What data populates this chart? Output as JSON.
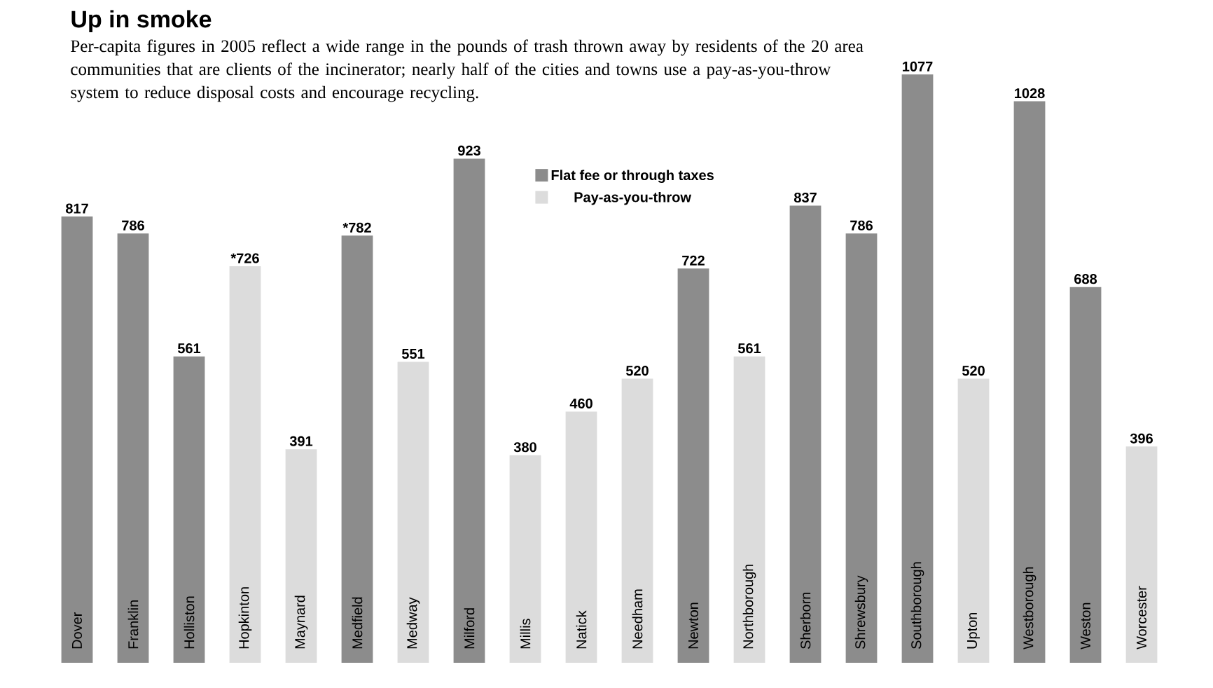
{
  "chart_data": {
    "type": "bar",
    "title": "Up in smoke",
    "subtitle": "Per-capita figures in 2005 reflect a wide range in the pounds of trash thrown away by residents of the 20 area communities that are clients of the incinerator; nearly half of the cities and towns use a pay-as-you-throw system to reduce disposal costs and encourage recycling.",
    "categories": [
      "Dover",
      "Franklin",
      "Holliston",
      "Hopkinton",
      "Maynard",
      "Medfield",
      "Medway",
      "Milford",
      "Millis",
      "Natick",
      "Needham",
      "Newton",
      "Northborough",
      "Sherborn",
      "Shrewsbury",
      "Southborough",
      "Upton",
      "Westborough",
      "Weston",
      "Worcester"
    ],
    "series": [
      {
        "name": "Flat fee or through taxes",
        "color": "#8c8c8c",
        "values": [
          817,
          786,
          561,
          null,
          null,
          782,
          null,
          923,
          null,
          null,
          null,
          722,
          null,
          837,
          786,
          1077,
          null,
          1028,
          688,
          null
        ],
        "value_labels": [
          "817",
          "786",
          "561",
          null,
          null,
          "*782",
          null,
          "923",
          null,
          null,
          null,
          "722",
          null,
          "837",
          "786",
          "1077",
          null,
          "1028",
          "688",
          null
        ]
      },
      {
        "name": "Pay-as-you-throw",
        "color": "#dcdcdc",
        "values": [
          null,
          null,
          null,
          726,
          391,
          null,
          551,
          null,
          380,
          460,
          520,
          null,
          561,
          null,
          null,
          null,
          520,
          null,
          null,
          396
        ],
        "value_labels": [
          null,
          null,
          null,
          "*726",
          "391",
          null,
          "551",
          null,
          "380",
          "460",
          "520",
          null,
          "561",
          null,
          null,
          null,
          "520",
          null,
          null,
          "396"
        ]
      }
    ],
    "legend": "top"
  }
}
